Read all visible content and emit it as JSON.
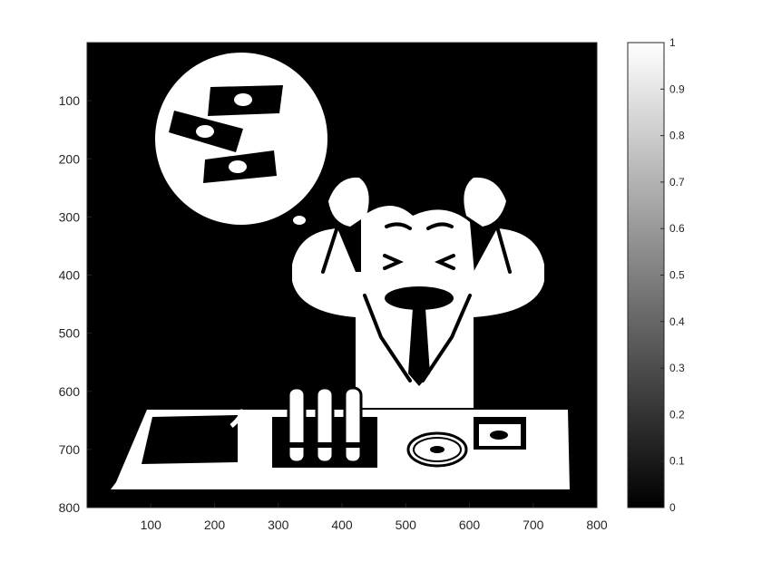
{
  "chart_data": {
    "type": "heatmap",
    "title": "",
    "xlabel": "",
    "ylabel": "",
    "xlim": [
      0,
      800
    ],
    "ylim": [
      0,
      800
    ],
    "x_ticks": [
      "100",
      "200",
      "300",
      "400",
      "500",
      "600",
      "700",
      "800"
    ],
    "y_ticks": [
      "100",
      "200",
      "300",
      "400",
      "500",
      "600",
      "700",
      "800"
    ],
    "y_direction": "reverse",
    "colormap": "gray",
    "clim": [
      0,
      1
    ],
    "colorbar": {
      "ticks": [
        "0",
        "0.1",
        "0.2",
        "0.3",
        "0.4",
        "0.5",
        "0.6",
        "0.7",
        "0.8",
        "0.9",
        "1"
      ]
    },
    "image": "binary (0/1) image of a stressed scientist at a lab bench, holding his head, with a thought bubble containing banknotes; test tubes in a rack, a petri dish and a small box on the bench",
    "colors": {
      "background": "#000000",
      "foreground": "#ffffff",
      "axis": "#262626"
    }
  }
}
